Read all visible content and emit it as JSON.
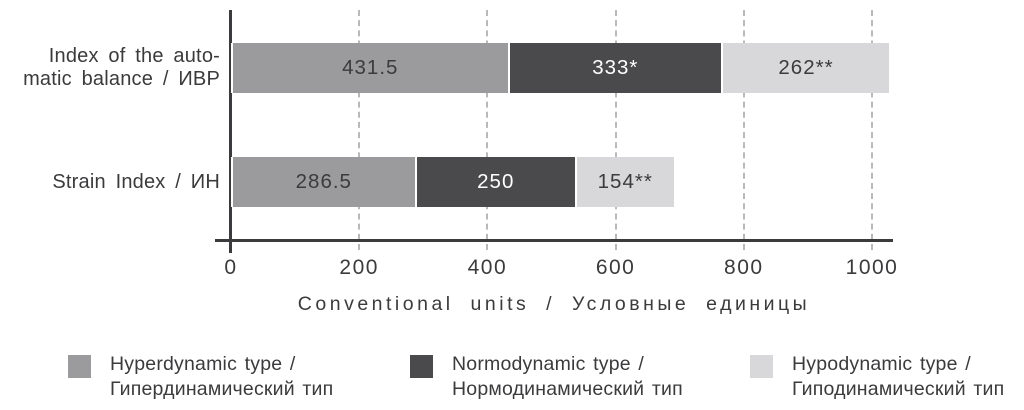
{
  "chart_data": {
    "type": "bar",
    "orientation": "horizontal",
    "stacked": true,
    "title": "",
    "xlabel": "Conventional units / Условные единицы",
    "xticks": [
      0,
      200,
      400,
      600,
      800,
      1000
    ],
    "xlim": [
      0,
      1031
    ],
    "grid": "vertical-dashed",
    "legend_position": "bottom",
    "axis_color": "#3b3b3d",
    "gridline_color": "#b9b9b9",
    "categories": [
      "Index of the automatic balance / ИВР",
      "Strain Index / ИН"
    ],
    "category_label_lines": [
      [
        "Index of the auto-",
        "matic balance / ИВР"
      ],
      [
        "Strain Index / ИН"
      ]
    ],
    "series": [
      {
        "name": "Hyperdynamic type / Гипердинамический тип",
        "legend_lines": [
          "Hyperdynamic type /",
          "Гипердинамический тип"
        ],
        "color": "#9b9b9e",
        "label_text_color": "#3b3b3d",
        "values": [
          431.5,
          286.5
        ],
        "data_labels": [
          "431.5",
          "286.5"
        ]
      },
      {
        "name": "Normodynamic type / Нормодинамический тип",
        "legend_lines": [
          "Normodynamic type /",
          "Нормодинамический тип"
        ],
        "color": "#4a4a4c",
        "label_text_color": "#ffffff",
        "values": [
          333,
          250
        ],
        "data_labels": [
          "333*",
          "250"
        ]
      },
      {
        "name": "Hypodynamic type / Гиподинамический тип",
        "legend_lines": [
          "Hypodynamic type /",
          "Гиподинамический тип"
        ],
        "color": "#d8d8da",
        "label_text_color": "#3b3b3d",
        "values": [
          262,
          154
        ],
        "data_labels": [
          "262**",
          "154**"
        ]
      }
    ]
  }
}
